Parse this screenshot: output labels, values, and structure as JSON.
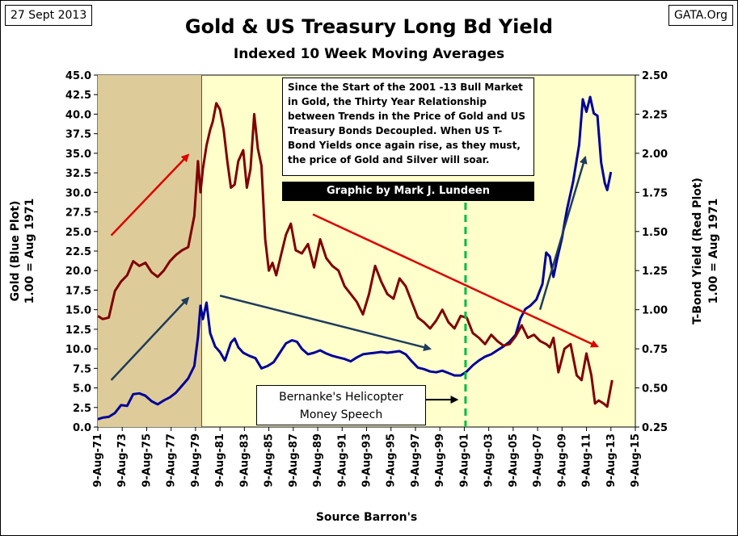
{
  "header": {
    "date": "27 Sept 2013",
    "source": "GATA.Org",
    "title": "Gold & US Treasury Long Bd Yield",
    "subtitle": "Indexed 10 Week Moving Averages"
  },
  "notes": {
    "decouple_text": "Since the Start of the 2001 -13 Bull Market in Gold, the Thirty Year Relationship between Trends in the Price of Gold and US Treasury Bonds Decoupled.  When US T-Bond Yields once again rise, as they must, the price of Gold and Silver will soar.",
    "credit": "Graphic by Mark J. Lundeen",
    "speech_line1": "Bernanke's Helicopter",
    "speech_line2": "Money Speech"
  },
  "colors": {
    "plot_bg": "#ffffcc",
    "shade_bg": "#ddcc99",
    "gold_line": "#000099",
    "bond_line": "#7f0000",
    "red_arrow": "#dd0000",
    "blue_arrow": "#1f3b5c",
    "marker": "#00bb44"
  },
  "chart_data": {
    "type": "line",
    "title": "Gold & US Treasury Long Bd Yield",
    "subtitle": "Indexed 10 Week Moving Averages",
    "xlabel": "Source Barron's",
    "ylabel_left": [
      "Gold    (Blue Plot)",
      "1.00 = Aug 1971"
    ],
    "ylabel_right": [
      "T-Bond Yield    (Red Plot)",
      "1.00 = Aug 1971"
    ],
    "x_range": [
      1971.6,
      2015.6
    ],
    "x_ticks": [
      {
        "x": 1971.6,
        "label": "9-Aug-71"
      },
      {
        "x": 1973.6,
        "label": "9-Aug-73"
      },
      {
        "x": 1975.6,
        "label": "9-Aug-75"
      },
      {
        "x": 1977.6,
        "label": "9-Aug-77"
      },
      {
        "x": 1979.6,
        "label": "9-Aug-79"
      },
      {
        "x": 1981.6,
        "label": "9-Aug-81"
      },
      {
        "x": 1983.6,
        "label": "9-Aug-83"
      },
      {
        "x": 1985.6,
        "label": "9-Aug-85"
      },
      {
        "x": 1987.6,
        "label": "9-Aug-87"
      },
      {
        "x": 1989.6,
        "label": "9-Aug-89"
      },
      {
        "x": 1991.6,
        "label": "9-Aug-91"
      },
      {
        "x": 1993.6,
        "label": "9-Aug-93"
      },
      {
        "x": 1995.6,
        "label": "9-Aug-95"
      },
      {
        "x": 1997.6,
        "label": "9-Aug-97"
      },
      {
        "x": 1999.6,
        "label": "9-Aug-99"
      },
      {
        "x": 2001.6,
        "label": "9-Aug-01"
      },
      {
        "x": 2003.6,
        "label": "9-Aug-03"
      },
      {
        "x": 2005.6,
        "label": "9-Aug-05"
      },
      {
        "x": 2007.6,
        "label": "9-Aug-07"
      },
      {
        "x": 2009.6,
        "label": "9-Aug-09"
      },
      {
        "x": 2011.6,
        "label": "9-Aug-11"
      },
      {
        "x": 2013.6,
        "label": "9-Aug-13"
      },
      {
        "x": 2015.6,
        "label": "9-Aug-15"
      }
    ],
    "y_left": {
      "range": [
        0,
        45
      ],
      "ticks": [
        "0.0",
        "2.5",
        "5.0",
        "7.5",
        "10.0",
        "12.5",
        "15.0",
        "17.5",
        "20.0",
        "22.5",
        "25.0",
        "27.5",
        "30.0",
        "32.5",
        "35.0",
        "37.5",
        "40.0",
        "42.5",
        "45.0"
      ]
    },
    "y_right": {
      "range": [
        0.25,
        2.5
      ],
      "ticks": [
        "0.25",
        "0.50",
        "0.75",
        "1.00",
        "1.25",
        "1.50",
        "1.75",
        "2.00",
        "2.25",
        "2.50"
      ]
    },
    "shaded_period": [
      1971.6,
      1980.1
    ],
    "marker_x": 2001.7,
    "series": [
      {
        "name": "Gold (Blue Plot)",
        "axis": "left",
        "color": "#000099",
        "x": [
          1971.6,
          1972.0,
          1972.5,
          1973.0,
          1973.5,
          1974.0,
          1974.5,
          1975.0,
          1975.5,
          1976.0,
          1976.5,
          1977.0,
          1977.5,
          1978.0,
          1978.5,
          1979.0,
          1979.5,
          1979.8,
          1980.0,
          1980.2,
          1980.5,
          1980.8,
          1981.2,
          1981.6,
          1982.0,
          1982.5,
          1982.8,
          1983.1,
          1983.5,
          1984.0,
          1984.5,
          1985.0,
          1985.5,
          1986.0,
          1986.5,
          1987.0,
          1987.5,
          1987.9,
          1988.3,
          1988.8,
          1989.3,
          1989.8,
          1990.3,
          1990.8,
          1991.3,
          1991.8,
          1992.3,
          1992.8,
          1993.3,
          1993.8,
          1994.3,
          1994.8,
          1995.3,
          1995.8,
          1996.3,
          1996.8,
          1997.3,
          1997.8,
          1998.3,
          1998.8,
          1999.3,
          1999.8,
          2000.3,
          2000.8,
          2001.3,
          2001.8,
          2002.3,
          2002.8,
          2003.3,
          2003.8,
          2004.3,
          2004.8,
          2005.3,
          2005.8,
          2006.2,
          2006.6,
          2007.0,
          2007.5,
          2008.0,
          2008.3,
          2008.6,
          2008.9,
          2009.2,
          2009.6,
          2010.0,
          2010.5,
          2011.0,
          2011.3,
          2011.6,
          2011.9,
          2012.2,
          2012.5,
          2012.8,
          2013.1,
          2013.3,
          2013.6
        ],
        "values": [
          1.0,
          1.2,
          1.3,
          1.8,
          2.8,
          2.7,
          4.2,
          4.3,
          4.0,
          3.3,
          2.9,
          3.4,
          3.8,
          4.4,
          5.3,
          6.2,
          7.8,
          11.5,
          15.5,
          13.8,
          15.9,
          12.0,
          10.3,
          9.6,
          8.5,
          10.8,
          11.3,
          10.2,
          9.5,
          9.1,
          8.8,
          7.5,
          7.8,
          8.3,
          9.5,
          10.7,
          11.1,
          10.9,
          10.0,
          9.3,
          9.5,
          9.8,
          9.4,
          9.1,
          8.9,
          8.7,
          8.4,
          8.9,
          9.3,
          9.4,
          9.5,
          9.6,
          9.5,
          9.6,
          9.7,
          9.3,
          8.4,
          7.6,
          7.4,
          7.1,
          7.0,
          7.2,
          6.9,
          6.6,
          6.6,
          7.1,
          7.9,
          8.5,
          9.0,
          9.3,
          9.8,
          10.3,
          10.9,
          11.8,
          13.9,
          15.1,
          15.5,
          16.3,
          18.3,
          22.3,
          21.8,
          19.2,
          21.5,
          24.2,
          27.8,
          31.3,
          36.1,
          41.9,
          40.3,
          42.2,
          40.1,
          39.8,
          33.8,
          31.2,
          30.3,
          32.6
        ]
      },
      {
        "name": "T-Bond Yield (Red Plot)",
        "axis": "right",
        "color": "#7f0000",
        "x": [
          1971.6,
          1972.0,
          1972.5,
          1973.0,
          1973.5,
          1974.0,
          1974.5,
          1975.0,
          1975.5,
          1976.0,
          1976.5,
          1977.0,
          1977.5,
          1978.0,
          1978.5,
          1979.0,
          1979.5,
          1979.8,
          1980.0,
          1980.2,
          1980.5,
          1980.8,
          1981.0,
          1981.3,
          1981.6,
          1981.9,
          1982.2,
          1982.5,
          1982.8,
          1983.1,
          1983.5,
          1983.8,
          1984.1,
          1984.4,
          1984.7,
          1985.0,
          1985.3,
          1985.6,
          1985.9,
          1986.2,
          1986.6,
          1987.0,
          1987.4,
          1987.8,
          1988.3,
          1988.8,
          1989.3,
          1989.8,
          1990.3,
          1990.8,
          1991.3,
          1991.8,
          1992.3,
          1992.8,
          1993.3,
          1993.8,
          1994.3,
          1994.8,
          1995.3,
          1995.8,
          1996.3,
          1996.8,
          1997.3,
          1997.8,
          1998.3,
          1998.8,
          1999.3,
          1999.8,
          2000.3,
          2000.8,
          2001.3,
          2001.8,
          2002.3,
          2002.8,
          2003.3,
          2003.8,
          2004.3,
          2004.8,
          2005.3,
          2005.8,
          2006.3,
          2006.8,
          2007.3,
          2007.8,
          2008.3,
          2008.6,
          2008.9,
          2009.3,
          2009.8,
          2010.3,
          2010.8,
          2011.2,
          2011.6,
          2012.0,
          2012.3,
          2012.6,
          2013.0,
          2013.3,
          2013.7
        ],
        "values": [
          0.96,
          0.94,
          0.95,
          1.12,
          1.18,
          1.22,
          1.31,
          1.28,
          1.3,
          1.24,
          1.21,
          1.25,
          1.31,
          1.35,
          1.38,
          1.4,
          1.6,
          1.95,
          1.75,
          1.9,
          2.05,
          2.15,
          2.2,
          2.32,
          2.28,
          2.15,
          1.95,
          1.78,
          1.8,
          1.95,
          2.02,
          1.78,
          1.9,
          2.25,
          2.03,
          1.92,
          1.45,
          1.25,
          1.3,
          1.22,
          1.35,
          1.48,
          1.55,
          1.38,
          1.36,
          1.42,
          1.27,
          1.45,
          1.33,
          1.28,
          1.25,
          1.15,
          1.1,
          1.05,
          0.97,
          1.1,
          1.28,
          1.18,
          1.1,
          1.07,
          1.2,
          1.15,
          1.05,
          0.95,
          0.92,
          0.88,
          0.93,
          1.0,
          0.92,
          0.88,
          0.96,
          0.95,
          0.85,
          0.82,
          0.78,
          0.84,
          0.8,
          0.77,
          0.78,
          0.83,
          0.9,
          0.82,
          0.84,
          0.8,
          0.78,
          0.76,
          0.82,
          0.6,
          0.75,
          0.78,
          0.58,
          0.55,
          0.72,
          0.58,
          0.4,
          0.42,
          0.4,
          0.38,
          0.55
        ]
      }
    ],
    "arrows": [
      {
        "color": "red",
        "from": [
          1972.7,
          24.5
        ],
        "to": [
          1979.0,
          34.8
        ],
        "axis": "left"
      },
      {
        "color": "blue",
        "from": [
          1972.7,
          6.0
        ],
        "to": [
          1979.0,
          16.5
        ],
        "axis": "left"
      },
      {
        "color": "blue",
        "from": [
          1981.6,
          16.8
        ],
        "to": [
          1998.8,
          10.0
        ],
        "axis": "left"
      },
      {
        "color": "red",
        "from": [
          1989.2,
          27.2
        ],
        "to": [
          2012.5,
          10.3
        ],
        "axis": "left"
      },
      {
        "color": "blue",
        "from": [
          2007.8,
          15.0
        ],
        "to": [
          2011.5,
          34.5
        ],
        "axis": "left"
      },
      {
        "color": "black",
        "from": [
          1998.0,
          3.5
        ],
        "to": [
          2001.0,
          3.5
        ],
        "axis": "left"
      }
    ]
  }
}
